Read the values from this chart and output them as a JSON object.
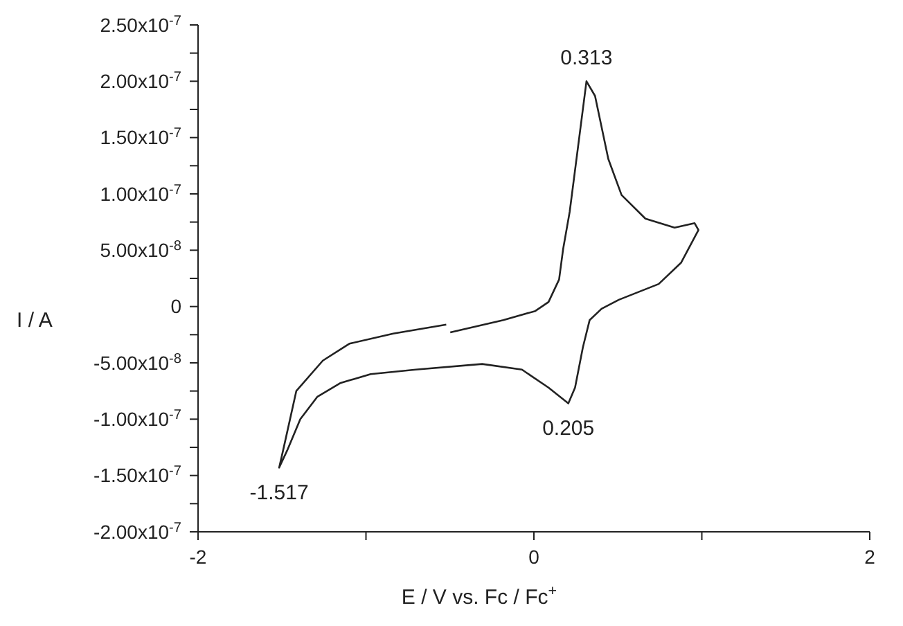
{
  "chart_data": {
    "type": "line",
    "xlabel": "E / V vs. Fc / Fc$^{+}$",
    "ylabel": "I / A",
    "series": [
      {
        "color": "#222222",
        "x": [
          -0.498,
          -0.182,
          0.008,
          0.087,
          0.15,
          0.174,
          0.213,
          0.313,
          0.364,
          0.443,
          0.522,
          0.664,
          0.838,
          0.957,
          0.98,
          0.877,
          0.743,
          0.506,
          0.403,
          0.332,
          0.292,
          0.245,
          0.205,
          0.087,
          -0.071,
          -0.308,
          -0.704,
          -0.972,
          -1.154,
          -1.289,
          -1.391,
          -1.47,
          -1.517,
          -1.494,
          -1.415,
          -1.257,
          -1.099,
          -0.838,
          -0.522
        ],
        "values": [
          -2.3e-08,
          -1.2e-08,
          -4e-09,
          4e-09,
          2.4e-08,
          5.1e-08,
          8.4e-08,
          2e-07,
          1.87e-07,
          1.31e-07,
          9.9e-08,
          7.8e-08,
          7e-08,
          7.4e-08,
          6.8e-08,
          3.9e-08,
          2e-08,
          6e-09,
          -2e-09,
          -1.2e-08,
          -3.6e-08,
          -7.2e-08,
          -8.6e-08,
          -7.2e-08,
          -5.6e-08,
          -5.1e-08,
          -5.6e-08,
          -6e-08,
          -6.8e-08,
          -8e-08,
          -1e-07,
          -1.28e-07,
          -1.43e-07,
          -1.28e-07,
          -7.5e-08,
          -4.8e-08,
          -3.3e-08,
          -2.4e-08,
          -1.6e-08
        ]
      }
    ],
    "xlim": [
      -2,
      2
    ],
    "xticks": [
      -2,
      {
        "value": -1,
        "label": null
      },
      0,
      {
        "value": 1,
        "label": null
      },
      2
    ],
    "ylim": [
      -2e-07,
      2.5e-07
    ],
    "yticks": [
      {
        "value": -2e-07,
        "label": "-2.00x10$^{-7}$"
      },
      {
        "value": -1.75e-07,
        "label": null
      },
      {
        "value": -1.5e-07,
        "label": "-1.50x10$^{-7}$"
      },
      {
        "value": -1.25e-07,
        "label": null
      },
      {
        "value": -1e-07,
        "label": "-1.00x10$^{-7}$"
      },
      {
        "value": -7.5e-08,
        "label": null
      },
      {
        "value": -5e-08,
        "label": "-5.00x10$^{-8}$"
      },
      {
        "value": -2.5e-08,
        "label": null
      },
      0,
      {
        "value": 2.5e-08,
        "label": null
      },
      {
        "value": 5e-08,
        "label": "5.00x10$^{-8}$"
      },
      {
        "value": 7.5e-08,
        "label": null
      },
      {
        "value": 1e-07,
        "label": "1.00x10$^{-7}$"
      },
      {
        "value": 1.25e-07,
        "label": null
      },
      {
        "value": 1.5e-07,
        "label": "1.50x10$^{-7}$"
      },
      {
        "value": 1.75e-07,
        "label": null
      },
      {
        "value": 2e-07,
        "label": "2.00x10$^{-7}$"
      },
      {
        "value": 2.25e-07,
        "label": null
      },
      {
        "value": 2.5e-07,
        "label": "2.50x10$^{-7}$"
      }
    ],
    "annotations": [
      {
        "text": "0.313",
        "x": 0.313,
        "y": 2e-07
      },
      {
        "text": "0.205",
        "x": 0.205,
        "y": -8.6e-08
      },
      {
        "text": "-1.517",
        "x": -1.517,
        "y": -1.43e-07
      }
    ],
    "marker": "none",
    "line_style": "solid"
  }
}
